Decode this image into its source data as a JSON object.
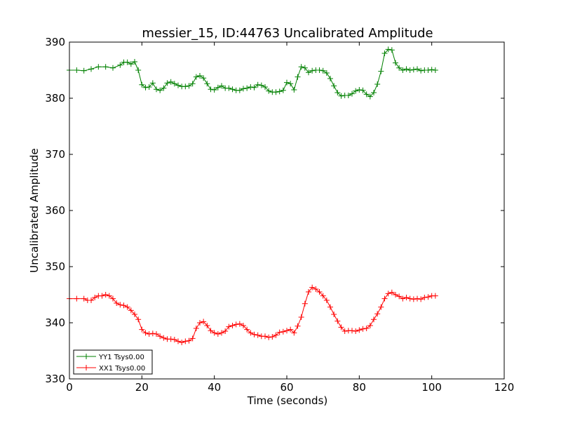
{
  "chart_data": {
    "type": "line",
    "title": "messier_15, ID:44763 Uncalibrated Amplitude",
    "xlabel": "Time (seconds)",
    "ylabel": "Uncalibrated Amplitude",
    "xlim": [
      0,
      120
    ],
    "ylim": [
      330,
      390
    ],
    "x_ticks": [
      "0",
      "20",
      "40",
      "60",
      "80",
      "100",
      "120"
    ],
    "y_ticks": [
      "330",
      "340",
      "350",
      "360",
      "370",
      "380",
      "390"
    ],
    "grid": false,
    "legend_position": "lower-left",
    "marker": "+",
    "series": [
      {
        "name": "YY1 Tsys0.00",
        "color": "#008000",
        "points": [
          [
            0,
            385.0
          ],
          [
            2,
            385.0
          ],
          [
            4,
            384.9
          ],
          [
            6,
            385.2
          ],
          [
            8,
            385.6
          ],
          [
            10,
            385.6
          ],
          [
            12,
            385.4
          ],
          [
            14,
            385.9
          ],
          [
            15,
            386.4
          ],
          [
            16,
            386.4
          ],
          [
            17,
            386.1
          ],
          [
            18,
            386.5
          ],
          [
            19,
            385.0
          ],
          [
            20,
            382.4
          ],
          [
            21,
            381.9
          ],
          [
            22,
            382.0
          ],
          [
            23,
            382.7
          ],
          [
            24,
            381.6
          ],
          [
            25,
            381.4
          ],
          [
            26,
            381.8
          ],
          [
            27,
            382.7
          ],
          [
            28,
            382.9
          ],
          [
            29,
            382.6
          ],
          [
            30,
            382.3
          ],
          [
            31,
            382.1
          ],
          [
            32,
            382.1
          ],
          [
            33,
            382.2
          ],
          [
            34,
            382.6
          ],
          [
            35,
            383.8
          ],
          [
            36,
            384.0
          ],
          [
            37,
            383.6
          ],
          [
            38,
            382.6
          ],
          [
            39,
            381.6
          ],
          [
            40,
            381.5
          ],
          [
            41,
            381.9
          ],
          [
            42,
            382.2
          ],
          [
            43,
            381.8
          ],
          [
            44,
            381.8
          ],
          [
            45,
            381.6
          ],
          [
            46,
            381.4
          ],
          [
            47,
            381.4
          ],
          [
            48,
            381.7
          ],
          [
            49,
            381.8
          ],
          [
            50,
            382.0
          ],
          [
            51,
            381.9
          ],
          [
            52,
            382.4
          ],
          [
            53,
            382.3
          ],
          [
            54,
            382.0
          ],
          [
            55,
            381.3
          ],
          [
            56,
            381.1
          ],
          [
            57,
            381.1
          ],
          [
            58,
            381.2
          ],
          [
            59,
            381.4
          ],
          [
            60,
            382.8
          ],
          [
            61,
            382.6
          ],
          [
            62,
            381.5
          ],
          [
            63,
            383.8
          ],
          [
            64,
            385.6
          ],
          [
            65,
            385.4
          ],
          [
            66,
            384.6
          ],
          [
            67,
            384.9
          ],
          [
            68,
            385.0
          ],
          [
            69,
            385.0
          ],
          [
            70,
            384.9
          ],
          [
            71,
            384.5
          ],
          [
            72,
            383.5
          ],
          [
            73,
            382.2
          ],
          [
            74,
            381.0
          ],
          [
            75,
            380.4
          ],
          [
            76,
            380.5
          ],
          [
            77,
            380.5
          ],
          [
            78,
            380.8
          ],
          [
            79,
            381.3
          ],
          [
            80,
            381.5
          ],
          [
            81,
            381.4
          ],
          [
            82,
            380.7
          ],
          [
            83,
            380.3
          ],
          [
            84,
            381.0
          ],
          [
            85,
            382.5
          ],
          [
            86,
            384.8
          ],
          [
            87,
            388.0
          ],
          [
            88,
            388.7
          ],
          [
            89,
            388.6
          ],
          [
            90,
            386.3
          ],
          [
            91,
            385.4
          ],
          [
            92,
            385.0
          ],
          [
            93,
            385.2
          ],
          [
            94,
            385.0
          ],
          [
            95,
            385.1
          ],
          [
            96,
            385.2
          ],
          [
            97,
            384.9
          ],
          [
            98,
            385.0
          ],
          [
            99,
            385.0
          ],
          [
            100,
            385.1
          ],
          [
            101,
            385.0
          ]
        ]
      },
      {
        "name": "XX1 Tsys0.00",
        "color": "#ff0000",
        "points": [
          [
            0,
            344.3
          ],
          [
            2,
            344.3
          ],
          [
            4,
            344.3
          ],
          [
            5,
            344.0
          ],
          [
            6,
            344.0
          ],
          [
            7,
            344.5
          ],
          [
            8,
            344.8
          ],
          [
            9,
            344.8
          ],
          [
            10,
            345.0
          ],
          [
            11,
            344.8
          ],
          [
            12,
            344.3
          ],
          [
            13,
            343.5
          ],
          [
            14,
            343.2
          ],
          [
            15,
            343.1
          ],
          [
            16,
            342.8
          ],
          [
            17,
            342.2
          ],
          [
            18,
            341.5
          ],
          [
            19,
            340.6
          ],
          [
            20,
            338.8
          ],
          [
            21,
            338.2
          ],
          [
            22,
            338.0
          ],
          [
            23,
            338.1
          ],
          [
            24,
            338.0
          ],
          [
            25,
            337.6
          ],
          [
            26,
            337.3
          ],
          [
            27,
            337.1
          ],
          [
            28,
            337.1
          ],
          [
            29,
            337.0
          ],
          [
            30,
            336.7
          ],
          [
            31,
            336.5
          ],
          [
            32,
            336.7
          ],
          [
            33,
            336.8
          ],
          [
            34,
            337.2
          ],
          [
            35,
            339.0
          ],
          [
            36,
            340.0
          ],
          [
            37,
            340.2
          ],
          [
            38,
            339.5
          ],
          [
            39,
            338.6
          ],
          [
            40,
            338.2
          ],
          [
            41,
            338.0
          ],
          [
            42,
            338.2
          ],
          [
            43,
            338.5
          ],
          [
            44,
            339.3
          ],
          [
            45,
            339.5
          ],
          [
            46,
            339.7
          ],
          [
            47,
            339.8
          ],
          [
            48,
            339.5
          ],
          [
            49,
            338.8
          ],
          [
            50,
            338.2
          ],
          [
            51,
            337.9
          ],
          [
            52,
            337.8
          ],
          [
            53,
            337.6
          ],
          [
            54,
            337.6
          ],
          [
            55,
            337.4
          ],
          [
            56,
            337.5
          ],
          [
            57,
            337.8
          ],
          [
            58,
            338.3
          ],
          [
            59,
            338.4
          ],
          [
            60,
            338.6
          ],
          [
            61,
            338.8
          ],
          [
            62,
            338.2
          ],
          [
            63,
            339.4
          ],
          [
            64,
            341.0
          ],
          [
            65,
            343.4
          ],
          [
            66,
            345.5
          ],
          [
            67,
            346.3
          ],
          [
            68,
            346.0
          ],
          [
            69,
            345.5
          ],
          [
            70,
            344.8
          ],
          [
            71,
            344.0
          ],
          [
            72,
            342.8
          ],
          [
            73,
            341.5
          ],
          [
            74,
            340.3
          ],
          [
            75,
            339.2
          ],
          [
            76,
            338.5
          ],
          [
            77,
            338.6
          ],
          [
            78,
            338.6
          ],
          [
            79,
            338.5
          ],
          [
            80,
            338.7
          ],
          [
            81,
            338.9
          ],
          [
            82,
            339.0
          ],
          [
            83,
            339.5
          ],
          [
            84,
            340.6
          ],
          [
            85,
            341.6
          ],
          [
            86,
            342.8
          ],
          [
            87,
            344.3
          ],
          [
            88,
            345.2
          ],
          [
            89,
            345.4
          ],
          [
            90,
            345.0
          ],
          [
            91,
            344.7
          ],
          [
            92,
            344.3
          ],
          [
            93,
            344.5
          ],
          [
            94,
            344.3
          ],
          [
            95,
            344.2
          ],
          [
            96,
            344.3
          ],
          [
            97,
            344.2
          ],
          [
            98,
            344.5
          ],
          [
            99,
            344.6
          ],
          [
            100,
            344.8
          ],
          [
            101,
            344.8
          ]
        ]
      }
    ]
  }
}
